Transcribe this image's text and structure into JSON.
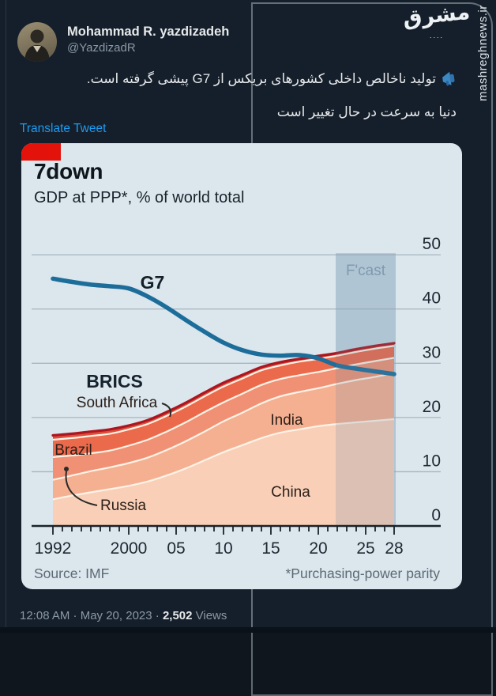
{
  "tweet": {
    "author": {
      "name": "Mohammad R. yazdizadeh",
      "handle": "@YazdizadR"
    },
    "body_icon": "megaphone-blue",
    "body_lines": [
      "تولید ناخالص داخلی کشورهای بریکس از G7 پیشی گرفته است.",
      "دنیا به سرعت در حال تغییر است"
    ],
    "translate_label": "Translate Tweet",
    "footer": {
      "prefix": "12:08 AM · May 20, 2023 · ",
      "views": "2,502",
      "suffix": " Views"
    }
  },
  "watermark": {
    "logo_text": "مشرق",
    "dots": "....",
    "site": "mashreghnews.ir"
  },
  "chart_data": {
    "type": "area",
    "title": "7down",
    "subtitle": "GDP at PPP*, % of world total",
    "source": "Source: IMF",
    "footnote": "*Purchasing-power parity",
    "forecast_label": "F'cast",
    "accent_color": "#e3120b",
    "background": "#dbe6ed",
    "x": [
      1992,
      1994,
      1996,
      1998,
      2000,
      2002,
      2004,
      2006,
      2008,
      2010,
      2012,
      2014,
      2016,
      2018,
      2020,
      2022,
      2024,
      2026,
      2028
    ],
    "x_ticks": {
      "years": [
        1992,
        2000,
        2005,
        2010,
        2015,
        2020,
        2025,
        2028
      ],
      "labels": [
        "1992",
        "2000",
        "05",
        "10",
        "15",
        "20",
        "25",
        "28"
      ]
    },
    "ylim": [
      0,
      50
    ],
    "yticks": [
      0,
      10,
      20,
      30,
      40,
      50
    ],
    "forecast_band": {
      "start": 2023,
      "end": 2028,
      "color": "#c2d5e1"
    },
    "line_series": {
      "name": "G7",
      "color": "#1d6d9a",
      "values": [
        45.6,
        45.0,
        44.5,
        44.2,
        43.8,
        42.3,
        40.3,
        38.0,
        35.8,
        33.8,
        32.4,
        31.6,
        31.4,
        31.5,
        30.9,
        29.6,
        29.0,
        28.5,
        28.0
      ]
    },
    "stack_label": "BRICS",
    "stack_outline_color": "#ab1620",
    "stack_divider_color": "#fdf3e7",
    "stack_series": [
      {
        "name": "China",
        "color": "#f9cfb8",
        "values": [
          4.9,
          5.6,
          6.2,
          6.8,
          7.4,
          8.2,
          9.3,
          10.6,
          12.1,
          13.6,
          14.9,
          16.2,
          17.2,
          17.8,
          18.4,
          18.8,
          19.1,
          19.4,
          19.7
        ]
      },
      {
        "name": "India",
        "color": "#f5b092",
        "values": [
          3.6,
          3.7,
          3.9,
          4.0,
          4.2,
          4.4,
          4.7,
          5.0,
          5.3,
          5.7,
          6.0,
          6.4,
          6.7,
          6.9,
          7.0,
          7.4,
          7.8,
          8.1,
          8.5
        ]
      },
      {
        "name": "Russia",
        "color": "#f09175",
        "values": [
          4.2,
          3.7,
          3.3,
          3.1,
          3.2,
          3.3,
          3.4,
          3.5,
          3.6,
          3.5,
          3.5,
          3.4,
          3.2,
          3.1,
          3.0,
          2.9,
          2.9,
          2.9,
          2.8
        ]
      },
      {
        "name": "Brazil",
        "color": "#ec6a4c",
        "values": [
          3.2,
          3.2,
          3.2,
          3.1,
          3.0,
          2.9,
          2.9,
          2.9,
          2.9,
          2.9,
          2.8,
          2.7,
          2.5,
          2.5,
          2.4,
          2.3,
          2.3,
          2.3,
          2.2
        ]
      },
      {
        "name": "South Africa",
        "color": "#dd4f39",
        "values": [
          0.8,
          0.8,
          0.8,
          0.8,
          0.7,
          0.7,
          0.7,
          0.7,
          0.7,
          0.7,
          0.65,
          0.6,
          0.6,
          0.5,
          0.55,
          0.5,
          0.5,
          0.5,
          0.5
        ]
      }
    ]
  }
}
